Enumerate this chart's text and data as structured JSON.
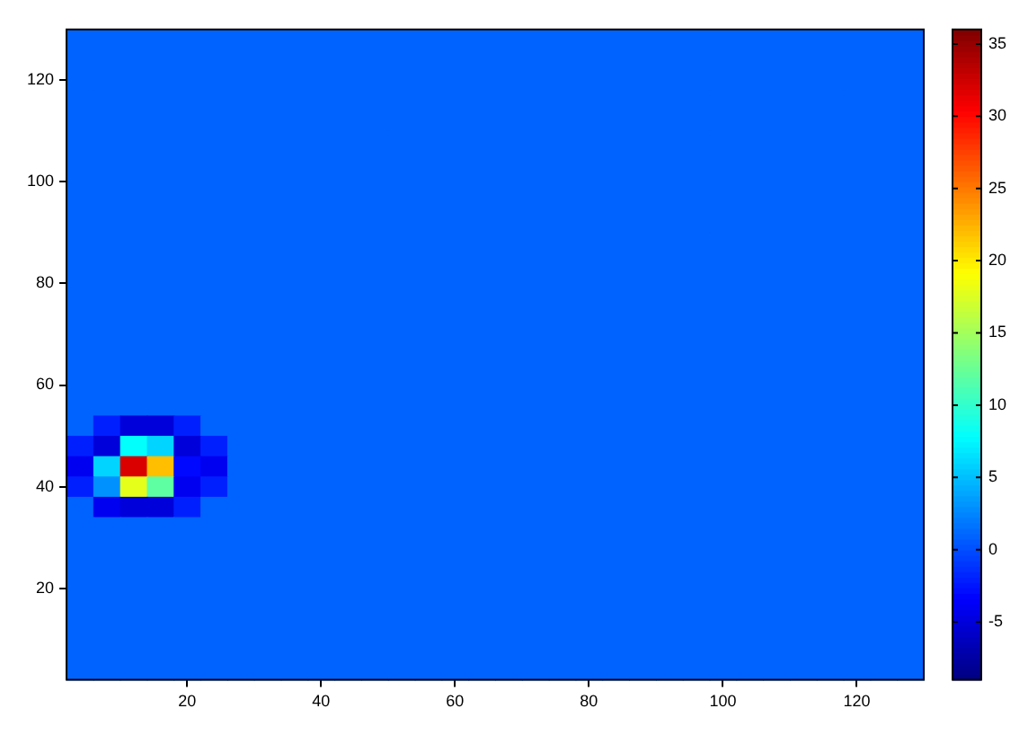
{
  "chart_data": {
    "type": "heatmap",
    "categories": [
      null,
      null,
      null,
      null,
      "20",
      null,
      null,
      null,
      null,
      "40",
      null,
      null,
      null,
      null,
      "60",
      null,
      null,
      null,
      null,
      "80",
      null,
      null,
      null,
      null,
      "100",
      null,
      null,
      null,
      null,
      "120",
      null,
      null
    ],
    "y_categories": [
      null,
      null,
      "120",
      null,
      null,
      null,
      null,
      "100",
      null,
      null,
      null,
      null,
      "80",
      null,
      null,
      null,
      null,
      "60",
      null,
      null,
      null,
      null,
      "40",
      null,
      null,
      null,
      null,
      "20",
      null,
      null,
      null,
      null
    ],
    "clim": [
      -9,
      36
    ],
    "cticks": [
      -5,
      0,
      5,
      10,
      15,
      20,
      25,
      30,
      35
    ],
    "cells": [
      [
        1,
        1,
        1,
        1,
        1,
        1,
        1,
        1,
        1,
        1,
        1,
        1,
        1,
        1,
        1,
        1,
        1,
        1,
        1,
        1,
        1,
        1,
        1,
        1,
        1,
        1,
        1,
        1,
        1,
        1,
        1,
        1
      ],
      [
        1,
        1,
        1,
        1,
        1,
        1,
        1,
        1,
        1,
        1,
        1,
        1,
        1,
        1,
        1,
        1,
        1,
        1,
        1,
        1,
        1,
        1,
        1,
        1,
        1,
        1,
        1,
        1,
        1,
        1,
        1,
        1
      ],
      [
        1,
        1,
        1,
        1,
        1,
        1,
        1,
        1,
        1,
        1,
        1,
        1,
        1,
        1,
        1,
        1,
        1,
        1,
        1,
        1,
        1,
        1,
        1,
        1,
        1,
        1,
        1,
        1,
        1,
        1,
        1,
        1
      ],
      [
        1,
        1,
        1,
        1,
        1,
        1,
        1,
        1,
        1,
        1,
        1,
        1,
        1,
        1,
        1,
        1,
        1,
        1,
        1,
        1,
        1,
        1,
        1,
        1,
        1,
        1,
        1,
        1,
        1,
        1,
        1,
        1
      ],
      [
        1,
        1,
        1,
        1,
        1,
        1,
        1,
        1,
        1,
        1,
        1,
        1,
        1,
        1,
        1,
        1,
        1,
        1,
        1,
        1,
        1,
        1,
        1,
        1,
        1,
        1,
        1,
        1,
        1,
        1,
        1,
        1
      ],
      [
        1,
        1,
        1,
        1,
        1,
        1,
        1,
        1,
        1,
        1,
        1,
        1,
        1,
        1,
        1,
        1,
        1,
        1,
        1,
        1,
        1,
        1,
        1,
        1,
        1,
        1,
        1,
        1,
        1,
        1,
        1,
        1
      ],
      [
        1,
        1,
        1,
        1,
        1,
        1,
        1,
        1,
        1,
        1,
        1,
        1,
        1,
        1,
        1,
        1,
        1,
        1,
        1,
        1,
        1,
        1,
        1,
        1,
        1,
        1,
        1,
        1,
        1,
        1,
        1,
        1
      ],
      [
        1,
        1,
        1,
        1,
        1,
        1,
        1,
        1,
        1,
        1,
        1,
        1,
        1,
        1,
        1,
        1,
        1,
        1,
        1,
        1,
        1,
        1,
        1,
        1,
        1,
        1,
        1,
        1,
        1,
        1,
        1,
        1
      ],
      [
        1,
        1,
        1,
        1,
        1,
        1,
        1,
        1,
        1,
        1,
        1,
        1,
        1,
        1,
        1,
        1,
        1,
        1,
        1,
        1,
        1,
        1,
        1,
        1,
        1,
        1,
        1,
        1,
        1,
        1,
        1,
        1
      ],
      [
        1,
        1,
        1,
        1,
        1,
        1,
        1,
        1,
        1,
        1,
        1,
        1,
        1,
        1,
        1,
        1,
        1,
        1,
        1,
        1,
        1,
        1,
        1,
        1,
        1,
        1,
        1,
        1,
        1,
        1,
        1,
        1
      ],
      [
        1,
        1,
        1,
        1,
        1,
        1,
        1,
        1,
        1,
        1,
        1,
        1,
        1,
        1,
        1,
        1,
        1,
        1,
        1,
        1,
        1,
        1,
        1,
        1,
        1,
        1,
        1,
        1,
        1,
        1,
        1,
        1
      ],
      [
        1,
        1,
        1,
        1,
        1,
        1,
        1,
        1,
        1,
        1,
        1,
        1,
        1,
        1,
        1,
        1,
        1,
        1,
        1,
        1,
        1,
        1,
        1,
        1,
        1,
        1,
        1,
        1,
        1,
        1,
        1,
        1
      ],
      [
        1,
        1,
        1,
        1,
        1,
        1,
        1,
        1,
        1,
        1,
        1,
        1,
        1,
        1,
        1,
        1,
        1,
        1,
        1,
        1,
        1,
        1,
        1,
        1,
        1,
        1,
        1,
        1,
        1,
        1,
        1,
        1
      ],
      [
        1,
        1,
        1,
        1,
        1,
        1,
        1,
        1,
        1,
        1,
        1,
        1,
        1,
        1,
        1,
        1,
        1,
        1,
        1,
        1,
        1,
        1,
        1,
        1,
        1,
        1,
        1,
        1,
        1,
        1,
        1,
        1
      ],
      [
        1,
        1,
        1,
        1,
        1,
        1,
        1,
        1,
        1,
        1,
        1,
        1,
        1,
        1,
        1,
        1,
        1,
        1,
        1,
        1,
        1,
        1,
        1,
        1,
        1,
        1,
        1,
        1,
        1,
        1,
        1,
        1
      ],
      [
        1,
        1,
        1,
        1,
        1,
        1,
        1,
        1,
        1,
        1,
        1,
        1,
        1,
        1,
        1,
        1,
        1,
        1,
        1,
        1,
        1,
        1,
        1,
        1,
        1,
        1,
        1,
        1,
        1,
        1,
        1,
        1
      ],
      [
        1,
        1,
        1,
        1,
        1,
        1,
        1,
        1,
        1,
        1,
        1,
        1,
        1,
        1,
        1,
        1,
        1,
        1,
        1,
        1,
        1,
        1,
        1,
        1,
        1,
        1,
        1,
        1,
        1,
        1,
        1,
        1
      ],
      [
        1,
        1,
        1,
        1,
        1,
        1,
        1,
        1,
        1,
        1,
        1,
        1,
        1,
        1,
        1,
        1,
        1,
        1,
        1,
        1,
        1,
        1,
        1,
        1,
        1,
        1,
        1,
        1,
        1,
        1,
        1,
        1
      ],
      [
        1,
        1,
        1,
        1,
        1,
        1,
        1,
        1,
        1,
        1,
        1,
        1,
        1,
        1,
        1,
        1,
        1,
        1,
        1,
        1,
        1,
        1,
        1,
        1,
        1,
        1,
        1,
        1,
        1,
        1,
        1,
        1
      ],
      [
        1,
        -2,
        -5,
        -5,
        -2,
        1,
        1,
        1,
        1,
        1,
        1,
        1,
        1,
        1,
        1,
        1,
        1,
        1,
        1,
        1,
        1,
        1,
        1,
        1,
        1,
        1,
        1,
        1,
        1,
        1,
        1,
        1
      ],
      [
        -2,
        -5,
        8,
        6,
        -5,
        -2,
        1,
        1,
        1,
        1,
        1,
        1,
        1,
        1,
        1,
        1,
        1,
        1,
        1,
        1,
        1,
        1,
        1,
        1,
        1,
        1,
        1,
        1,
        1,
        1,
        1,
        1
      ],
      [
        -4,
        6,
        32,
        22,
        -3,
        -4,
        1,
        1,
        1,
        1,
        1,
        1,
        1,
        1,
        1,
        1,
        1,
        1,
        1,
        1,
        1,
        1,
        1,
        1,
        1,
        1,
        1,
        1,
        1,
        1,
        1,
        1
      ],
      [
        -2,
        3,
        18,
        12,
        -4,
        -2,
        1,
        1,
        1,
        1,
        1,
        1,
        1,
        1,
        1,
        1,
        1,
        1,
        1,
        1,
        1,
        1,
        1,
        1,
        1,
        1,
        1,
        1,
        1,
        1,
        1,
        1
      ],
      [
        1,
        -4,
        -5,
        -5,
        -2,
        1,
        1,
        1,
        1,
        1,
        1,
        1,
        1,
        1,
        1,
        1,
        1,
        1,
        1,
        1,
        1,
        1,
        1,
        1,
        1,
        1,
        1,
        1,
        1,
        1,
        1,
        1
      ],
      [
        1,
        1,
        1,
        1,
        1,
        1,
        1,
        1,
        1,
        1,
        1,
        1,
        1,
        1,
        1,
        1,
        1,
        1,
        1,
        1,
        1,
        1,
        1,
        1,
        1,
        1,
        1,
        1,
        1,
        1,
        1,
        1
      ],
      [
        1,
        1,
        1,
        1,
        1,
        1,
        1,
        1,
        1,
        1,
        1,
        1,
        1,
        1,
        1,
        1,
        1,
        1,
        1,
        1,
        1,
        1,
        1,
        1,
        1,
        1,
        1,
        1,
        1,
        1,
        1,
        1
      ],
      [
        1,
        1,
        1,
        1,
        1,
        1,
        1,
        1,
        1,
        1,
        1,
        1,
        1,
        1,
        1,
        1,
        1,
        1,
        1,
        1,
        1,
        1,
        1,
        1,
        1,
        1,
        1,
        1,
        1,
        1,
        1,
        1
      ],
      [
        1,
        1,
        1,
        1,
        1,
        1,
        1,
        1,
        1,
        1,
        1,
        1,
        1,
        1,
        1,
        1,
        1,
        1,
        1,
        1,
        1,
        1,
        1,
        1,
        1,
        1,
        1,
        1,
        1,
        1,
        1,
        1
      ],
      [
        1,
        1,
        1,
        1,
        1,
        1,
        1,
        1,
        1,
        1,
        1,
        1,
        1,
        1,
        1,
        1,
        1,
        1,
        1,
        1,
        1,
        1,
        1,
        1,
        1,
        1,
        1,
        1,
        1,
        1,
        1,
        1
      ],
      [
        1,
        1,
        1,
        1,
        1,
        1,
        1,
        1,
        1,
        1,
        1,
        1,
        1,
        1,
        1,
        1,
        1,
        1,
        1,
        1,
        1,
        1,
        1,
        1,
        1,
        1,
        1,
        1,
        1,
        1,
        1,
        1
      ],
      [
        1,
        1,
        1,
        1,
        1,
        1,
        1,
        1,
        1,
        1,
        1,
        1,
        1,
        1,
        1,
        1,
        1,
        1,
        1,
        1,
        1,
        1,
        1,
        1,
        1,
        1,
        1,
        1,
        1,
        1,
        1,
        1
      ],
      [
        1,
        1,
        1,
        1,
        1,
        1,
        1,
        1,
        1,
        1,
        1,
        1,
        1,
        1,
        1,
        1,
        1,
        1,
        1,
        1,
        1,
        1,
        1,
        1,
        1,
        1,
        1,
        1,
        1,
        1,
        1,
        1
      ]
    ]
  }
}
